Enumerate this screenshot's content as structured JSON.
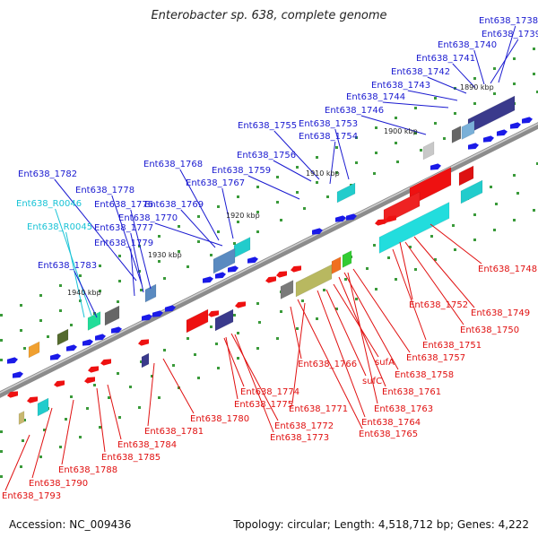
{
  "title": "Enterobacter sp. 638, complete genome",
  "accession": "Accession: NC_009436",
  "topology": "Topology: circular; Length: 4,518,712 bp; Genes: 4,222",
  "colors": {
    "plus_label": "#1a1ad0",
    "rna_label": "#19c3d6",
    "minus_label": "#e01010",
    "backbone": "#909090"
  },
  "kbp_labels": [
    {
      "text": "1890 kbp"
    },
    {
      "text": "1900 kbp"
    },
    {
      "text": "1910 kbp"
    },
    {
      "text": "1920 kbp"
    },
    {
      "text": "1930 kbp"
    },
    {
      "text": "1940 kbp"
    }
  ],
  "plus_labels": [
    {
      "text": "Ent638_1738"
    },
    {
      "text": "Ent638_1739"
    },
    {
      "text": "Ent638_1740"
    },
    {
      "text": "Ent638_1741"
    },
    {
      "text": "Ent638_1742"
    },
    {
      "text": "Ent638_1743"
    },
    {
      "text": "Ent638_1744"
    },
    {
      "text": "Ent638_1746"
    },
    {
      "text": "Ent638_1753"
    },
    {
      "text": "Ent638_1755"
    },
    {
      "text": "Ent638_1754"
    },
    {
      "text": "Ent638_1756"
    },
    {
      "text": "Ent638_1759"
    },
    {
      "text": "Ent638_1768"
    },
    {
      "text": "Ent638_1767"
    },
    {
      "text": "Ent638_1782"
    },
    {
      "text": "Ent638_1778"
    },
    {
      "text": "Ent638_R0046"
    },
    {
      "text": "Ent638_1776"
    },
    {
      "text": "Ent638_1769"
    },
    {
      "text": "Ent638_1770"
    },
    {
      "text": "Ent638_R0045"
    },
    {
      "text": "Ent638_1777"
    },
    {
      "text": "Ent638_1779"
    },
    {
      "text": "Ent638_1783"
    }
  ],
  "minus_labels": [
    {
      "text": "Ent638_1748"
    },
    {
      "text": "Ent638_1749"
    },
    {
      "text": "Ent638_1752"
    },
    {
      "text": "Ent638_1750"
    },
    {
      "text": "Ent638_1751"
    },
    {
      "text": "sufA"
    },
    {
      "text": "Ent638_1757"
    },
    {
      "text": "Ent638_1758"
    },
    {
      "text": "Ent638_1766"
    },
    {
      "text": "sufC"
    },
    {
      "text": "Ent638_1761"
    },
    {
      "text": "Ent638_1774"
    },
    {
      "text": "Ent638_1771"
    },
    {
      "text": "Ent638_1763"
    },
    {
      "text": "Ent638_1775"
    },
    {
      "text": "Ent638_1764"
    },
    {
      "text": "Ent638_1772"
    },
    {
      "text": "Ent638_1765"
    },
    {
      "text": "Ent638_1773"
    },
    {
      "text": "Ent638_1780"
    },
    {
      "text": "Ent638_1781"
    },
    {
      "text": "Ent638_1784"
    },
    {
      "text": "Ent638_1785"
    },
    {
      "text": "Ent638_1788"
    },
    {
      "text": "Ent638_1790"
    },
    {
      "text": "Ent638_1793"
    }
  ]
}
